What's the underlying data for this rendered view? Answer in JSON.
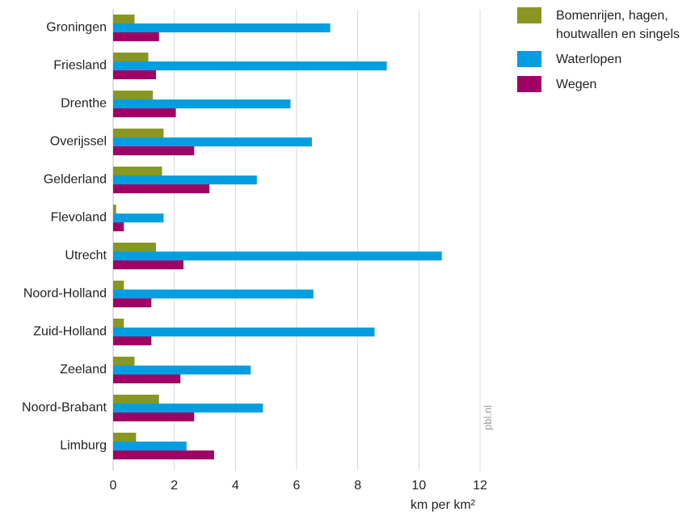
{
  "chart_data": {
    "type": "bar",
    "orientation": "horizontal",
    "categories": [
      "Groningen",
      "Friesland",
      "Drenthe",
      "Overijssel",
      "Gelderland",
      "Flevoland",
      "Utrecht",
      "Noord-Holland",
      "Zuid-Holland",
      "Zeeland",
      "Noord-Brabant",
      "Limburg"
    ],
    "series": [
      {
        "name": "Bomenrijen, hagen, houtwallen en singels",
        "color": "#8a9622",
        "values": [
          0.7,
          1.15,
          1.3,
          1.65,
          1.6,
          0.1,
          1.4,
          0.35,
          0.35,
          0.7,
          1.5,
          0.75
        ]
      },
      {
        "name": "Waterlopen",
        "color": "#029ee0",
        "values": [
          7.1,
          8.95,
          5.8,
          6.5,
          4.7,
          1.65,
          10.75,
          6.55,
          8.55,
          4.5,
          4.9,
          2.4
        ]
      },
      {
        "name": "Wegen",
        "color": "#a00066",
        "values": [
          1.5,
          1.4,
          2.05,
          2.65,
          3.15,
          0.35,
          2.3,
          1.25,
          1.25,
          2.2,
          2.65,
          3.3
        ]
      }
    ],
    "xlim": [
      0,
      12
    ],
    "xticks": [
      "0",
      "2",
      "4",
      "6",
      "8",
      "10",
      "12"
    ],
    "xlabel": "km per km²",
    "grid": true,
    "legend_position": "top-right",
    "watermark": "pbl.nl"
  }
}
